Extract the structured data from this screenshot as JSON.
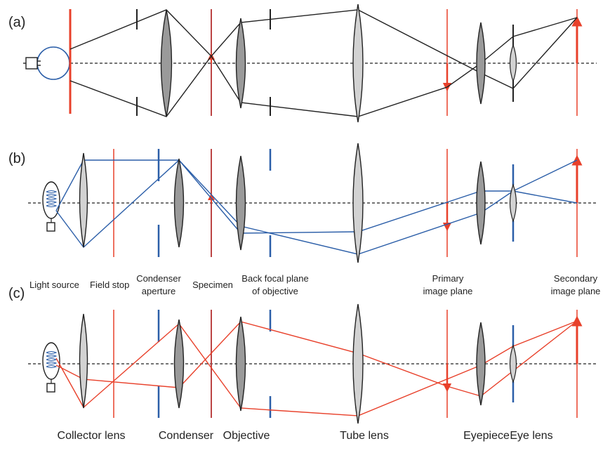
{
  "panels": [
    {
      "id": "a",
      "label": "(a)"
    },
    {
      "id": "b",
      "label": "(b)"
    },
    {
      "id": "c",
      "label": "(c)"
    }
  ],
  "plane_labels": {
    "light_source": "Light source",
    "field_stop": "Field stop",
    "condenser_aperture_1": "Condenser",
    "condenser_aperture_2": "aperture",
    "specimen": "Specimen",
    "back_focal_plane_1": "Back focal plane",
    "back_focal_plane_2": "of objective",
    "primary_image_1": "Primary",
    "primary_image_2": "image plane",
    "secondary_image_1": "Secondary",
    "secondary_image_2": "image plane"
  },
  "component_labels": {
    "collector_lens": "Collector lens",
    "condenser": "Condenser",
    "objective": "Objective",
    "tube_lens": "Tube lens",
    "eyepiece": "Eyepiece",
    "eye_lens": "Eye lens"
  },
  "colors": {
    "ink": "#222222",
    "red": "#e8402a",
    "blue": "#2b5ea8",
    "lens_dark": "#9a9a9a",
    "lens_light": "#d2d2d2"
  }
}
